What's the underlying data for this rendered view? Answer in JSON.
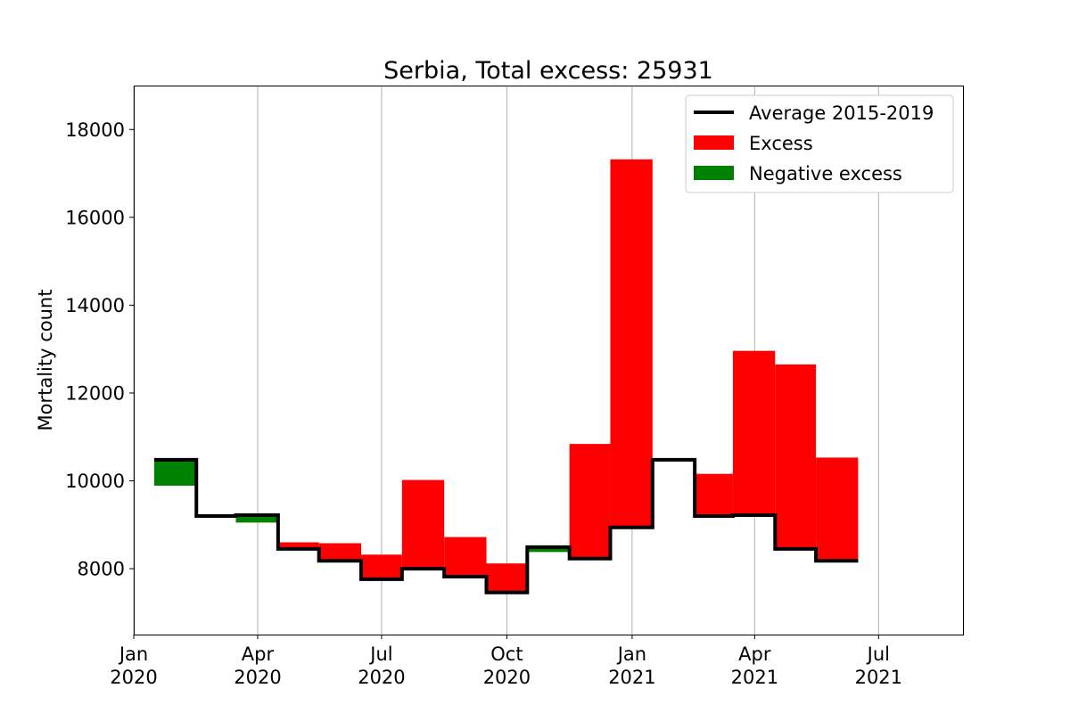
{
  "chart_data": {
    "type": "step-bar",
    "title": "Serbia, Total excess: 25931",
    "xlabel": "",
    "ylabel": "Mortality count",
    "ylim": [
      6500,
      19000
    ],
    "xlim": [
      "2020-01-01",
      "2021-09-01"
    ],
    "grid": "x-major",
    "legend_position": "top-right",
    "x_ticks": [
      {
        "date": "2020-01-01",
        "line1": "Jan",
        "line2": "2020"
      },
      {
        "date": "2020-04-01",
        "line1": "Apr",
        "line2": "2020"
      },
      {
        "date": "2020-07-01",
        "line1": "Jul",
        "line2": "2020"
      },
      {
        "date": "2020-10-01",
        "line1": "Oct",
        "line2": "2020"
      },
      {
        "date": "2021-01-01",
        "line1": "Jan",
        "line2": "2021"
      },
      {
        "date": "2021-04-01",
        "line1": "Apr",
        "line2": "2021"
      },
      {
        "date": "2021-07-01",
        "line1": "Jul",
        "line2": "2021"
      }
    ],
    "y_ticks": [
      8000,
      10000,
      12000,
      14000,
      16000,
      18000
    ],
    "legend": [
      {
        "label": "Average 2015-2019",
        "kind": "line",
        "color": "#000000"
      },
      {
        "label": "Excess",
        "kind": "patch",
        "color": "#ff0000"
      },
      {
        "label": "Negative excess",
        "kind": "patch",
        "color": "#008000"
      }
    ],
    "periods": [
      {
        "start": "2020-01-16",
        "end": "2020-02-16",
        "average": 10480,
        "actual": 9890
      },
      {
        "start": "2020-02-16",
        "end": "2020-03-16",
        "average": 9200,
        "actual": 9200
      },
      {
        "start": "2020-03-16",
        "end": "2020-04-16",
        "average": 9220,
        "actual": 9050
      },
      {
        "start": "2020-04-16",
        "end": "2020-05-16",
        "average": 8450,
        "actual": 8600
      },
      {
        "start": "2020-05-16",
        "end": "2020-06-16",
        "average": 8180,
        "actual": 8580
      },
      {
        "start": "2020-06-16",
        "end": "2020-07-16",
        "average": 7760,
        "actual": 8320
      },
      {
        "start": "2020-07-16",
        "end": "2020-08-16",
        "average": 8000,
        "actual": 10020
      },
      {
        "start": "2020-08-16",
        "end": "2020-09-16",
        "average": 7820,
        "actual": 8720
      },
      {
        "start": "2020-09-16",
        "end": "2020-10-16",
        "average": 7460,
        "actual": 8120
      },
      {
        "start": "2020-10-16",
        "end": "2020-11-16",
        "average": 8490,
        "actual": 8380
      },
      {
        "start": "2020-11-16",
        "end": "2020-12-16",
        "average": 8230,
        "actual": 10840
      },
      {
        "start": "2020-12-16",
        "end": "2021-01-16",
        "average": 8940,
        "actual": 17320
      },
      {
        "start": "2021-01-16",
        "end": "2021-02-16",
        "average": 10480,
        "actual": 10460
      },
      {
        "start": "2021-02-16",
        "end": "2021-03-16",
        "average": 9200,
        "actual": 10160
      },
      {
        "start": "2021-03-16",
        "end": "2021-04-16",
        "average": 9220,
        "actual": 12960
      },
      {
        "start": "2021-04-16",
        "end": "2021-05-16",
        "average": 8450,
        "actual": 12650
      },
      {
        "start": "2021-05-16",
        "end": "2021-06-16",
        "average": 8180,
        "actual": 10530
      }
    ]
  }
}
